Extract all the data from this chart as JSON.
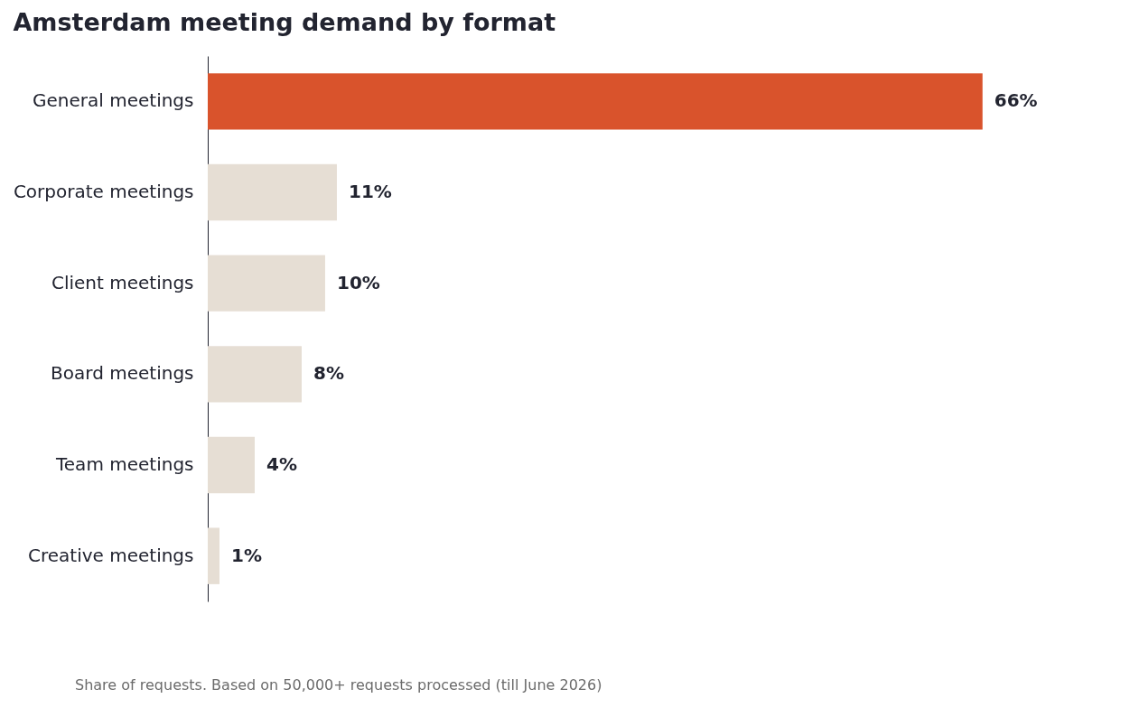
{
  "chart_data": {
    "type": "bar",
    "orientation": "horizontal",
    "title": "Amsterdam meeting demand by format",
    "categories": [
      "General meetings",
      "Corporate meetings",
      "Client meetings",
      "Board meetings",
      "Team meetings",
      "Creative meetings"
    ],
    "values": [
      66,
      11,
      10,
      8,
      4,
      1
    ],
    "colors": [
      "#d9532c",
      "#e6ded4",
      "#e6ded4",
      "#e6ded4",
      "#e6ded4",
      "#e6ded4"
    ],
    "value_labels": [
      "66%",
      "11%",
      "10%",
      "8%",
      "4%",
      "1%"
    ],
    "annotations": [
      "Share of requests. Based on 50,000+ requests processed (till June 2026)"
    ]
  }
}
